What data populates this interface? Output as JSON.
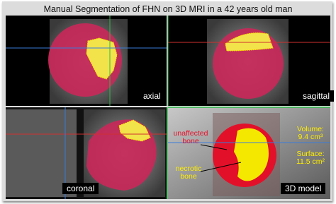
{
  "title": "Manual Segmentation of FHN on 3D MRI in a 42 years old man",
  "panels": [
    {
      "label": "axial"
    },
    {
      "label": "sagittal"
    },
    {
      "label": "coronal"
    },
    {
      "label": "3D model"
    }
  ],
  "annotations": {
    "unaffected": "unaffected bone",
    "necrotic": "necrotic bone",
    "volume_label": "Volume:",
    "volume_value": "9.4 cm³",
    "surface_label": "Surface:",
    "surface_value": "11.5 cm²"
  }
}
